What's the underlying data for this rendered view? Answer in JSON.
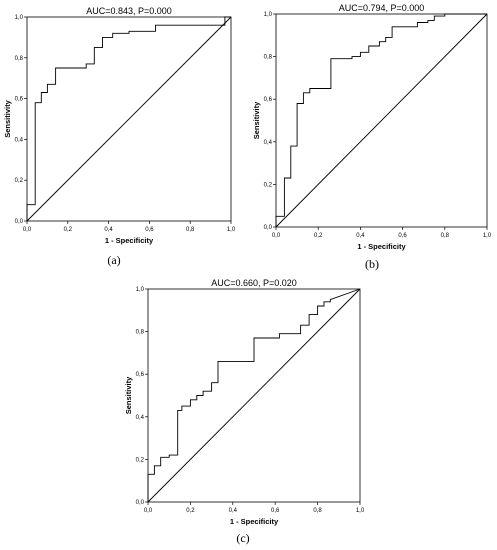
{
  "chart_data": [
    {
      "type": "line",
      "panel_label": "(a)",
      "title": "AUC=0.843, P=0.000",
      "xlabel": "1 - Specificity",
      "ylabel": "Sensitivity",
      "xlim": [
        0,
        1
      ],
      "ylim": [
        0,
        1
      ],
      "xticks": [
        "0,0",
        "0,2",
        "0,4",
        "0,6",
        "0,8",
        "1,0"
      ],
      "yticks": [
        "0,0",
        "0,2",
        "0,4",
        "0,6",
        "0,8",
        "1,0"
      ],
      "grid": false,
      "series": [
        {
          "x": [
            0,
            0,
            0.04,
            0.04,
            0.07,
            0.07,
            0.1,
            0.1,
            0.14,
            0.14,
            0.29,
            0.29,
            0.33,
            0.33,
            0.37,
            0.37,
            0.42,
            0.42,
            0.5,
            0.5,
            0.63,
            0.63,
            0.97,
            0.97,
            1.0
          ],
          "y": [
            0,
            0.08,
            0.08,
            0.58,
            0.58,
            0.63,
            0.63,
            0.67,
            0.67,
            0.75,
            0.75,
            0.77,
            0.77,
            0.85,
            0.85,
            0.9,
            0.9,
            0.92,
            0.92,
            0.93,
            0.93,
            0.96,
            0.96,
            1.0,
            1.0
          ]
        },
        {
          "x": [
            0,
            1
          ],
          "y": [
            0,
            1
          ]
        }
      ]
    },
    {
      "type": "line",
      "panel_label": "(b)",
      "title": "AUC=0.794, P=0.000",
      "xlabel": "1 - Specificity",
      "ylabel": "Sensitivity",
      "xlim": [
        0,
        1
      ],
      "ylim": [
        0,
        1
      ],
      "xticks": [
        "0,0",
        "0,2",
        "0,4",
        "0,6",
        "0,8",
        "1,0"
      ],
      "yticks": [
        "0,0",
        "0,2",
        "0,4",
        "0,6",
        "0,8",
        "1,0"
      ],
      "grid": false,
      "series": [
        {
          "x": [
            0,
            0,
            0.04,
            0.04,
            0.07,
            0.07,
            0.1,
            0.1,
            0.13,
            0.13,
            0.16,
            0.16,
            0.19,
            0.19,
            0.26,
            0.26,
            0.36,
            0.36,
            0.4,
            0.4,
            0.44,
            0.44,
            0.49,
            0.49,
            0.52,
            0.52,
            0.55,
            0.55,
            0.67,
            0.67,
            0.72,
            0.72,
            0.75,
            0.75,
            0.8,
            0.8,
            1.0
          ],
          "y": [
            0,
            0.05,
            0.05,
            0.23,
            0.23,
            0.38,
            0.38,
            0.58,
            0.58,
            0.63,
            0.63,
            0.65,
            0.65,
            0.65,
            0.65,
            0.79,
            0.79,
            0.8,
            0.8,
            0.82,
            0.82,
            0.85,
            0.85,
            0.87,
            0.87,
            0.89,
            0.89,
            0.94,
            0.94,
            0.96,
            0.96,
            0.97,
            0.97,
            0.99,
            0.99,
            1.0,
            1.0
          ]
        },
        {
          "x": [
            0,
            1
          ],
          "y": [
            0,
            1
          ]
        }
      ]
    },
    {
      "type": "line",
      "panel_label": "(c)",
      "title": "AUC=0.660, P=0.020",
      "xlabel": "1 - Specificity",
      "ylabel": "Sensitivity",
      "xlim": [
        0,
        1
      ],
      "ylim": [
        0,
        1
      ],
      "xticks": [
        "0,0",
        "0,2",
        "0,4",
        "0,6",
        "0,8",
        "1,0"
      ],
      "yticks": [
        "0,0",
        "0,2",
        "0,4",
        "0,6",
        "0,8",
        "1,0"
      ],
      "grid": false,
      "series": [
        {
          "x": [
            0,
            0,
            0.03,
            0.03,
            0.06,
            0.06,
            0.1,
            0.1,
            0.14,
            0.14,
            0.16,
            0.16,
            0.2,
            0.2,
            0.23,
            0.23,
            0.26,
            0.26,
            0.3,
            0.3,
            0.33,
            0.33,
            0.5,
            0.5,
            0.62,
            0.62,
            0.72,
            0.72,
            0.76,
            0.76,
            0.8,
            0.8,
            0.83,
            0.83,
            0.86,
            0.86,
            1.0
          ],
          "y": [
            0,
            0.13,
            0.13,
            0.17,
            0.17,
            0.21,
            0.21,
            0.22,
            0.22,
            0.43,
            0.43,
            0.45,
            0.45,
            0.48,
            0.48,
            0.5,
            0.5,
            0.52,
            0.52,
            0.56,
            0.56,
            0.66,
            0.66,
            0.77,
            0.77,
            0.79,
            0.79,
            0.83,
            0.83,
            0.88,
            0.88,
            0.92,
            0.92,
            0.94,
            0.94,
            0.95,
            1.0
          ]
        },
        {
          "x": [
            0,
            1
          ],
          "y": [
            0,
            1
          ]
        }
      ]
    }
  ]
}
